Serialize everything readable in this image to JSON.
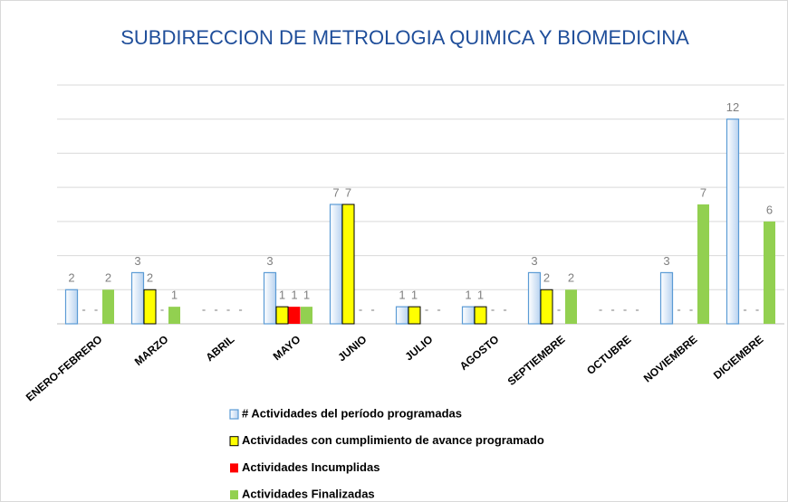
{
  "chart_data": {
    "type": "bar",
    "title": "SUBDIRECCION DE METROLOGIA QUIMICA Y BIOMEDICINA",
    "categories": [
      "ENERO-FEBRERO",
      "MARZO",
      "ABRIL",
      "MAYO",
      "JUNIO",
      "JULIO",
      "AGOSTO",
      "SEPTIEMBRE",
      "OCTUBRE",
      "NOVIEMBRE",
      "DICIEMBRE"
    ],
    "series": [
      {
        "name": "# Actividades del período programadas",
        "color": "#dbe9f8",
        "values": [
          2,
          3,
          0,
          3,
          7,
          1,
          1,
          3,
          0,
          3,
          12
        ],
        "value_labels": [
          "2",
          "3",
          "-",
          "3",
          "7",
          "1",
          "1",
          "3",
          "-",
          "3",
          "12"
        ]
      },
      {
        "name": "Actividades con cumplimiento de avance programado",
        "color": "#ffff00",
        "values": [
          0,
          2,
          0,
          1,
          7,
          1,
          1,
          2,
          0,
          0,
          0
        ],
        "value_labels": [
          "-",
          "2",
          "-",
          "1",
          "7",
          "1",
          "1",
          "2",
          "-",
          "-",
          "-"
        ]
      },
      {
        "name": "Actividades Incumplidas",
        "color": "#ff0000",
        "values": [
          0,
          0,
          0,
          1,
          0,
          0,
          0,
          0,
          0,
          0,
          0
        ],
        "value_labels": [
          "-",
          "-",
          "-",
          "1",
          "-",
          "-",
          "-",
          "-",
          "-",
          "-",
          "-"
        ]
      },
      {
        "name": "Actividades Finalizadas",
        "color": "#92d050",
        "values": [
          2,
          1,
          0,
          1,
          0,
          0,
          0,
          2,
          0,
          7,
          6
        ],
        "value_labels": [
          "2",
          "1",
          "-",
          "1",
          "-",
          "-",
          "-",
          "2",
          "-",
          "7",
          "6"
        ]
      }
    ],
    "ylim": [
      0,
      14
    ],
    "yticks": [
      0,
      2,
      4,
      6,
      8,
      10,
      12,
      14
    ],
    "grid": true
  }
}
